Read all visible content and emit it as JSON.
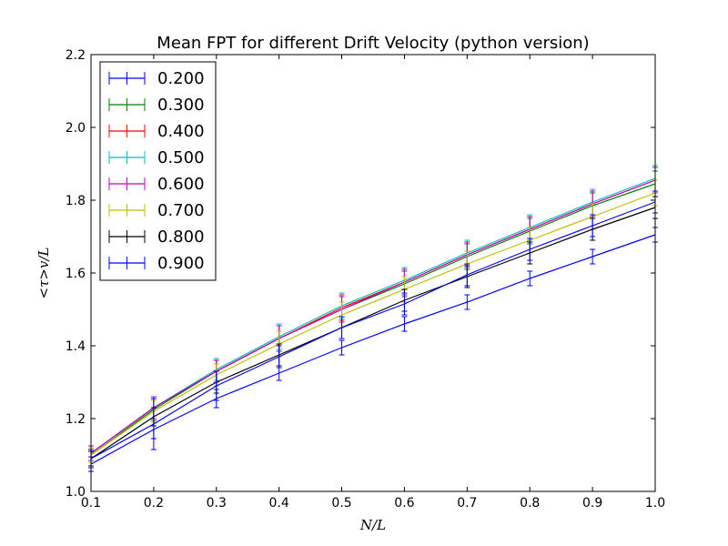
{
  "chart_data": {
    "type": "line",
    "title": "Mean FPT for different Drift Velocity (python version)",
    "xlabel": "N/L",
    "ylabel": "<τ>v/L",
    "xlim": [
      0.1,
      1.0
    ],
    "ylim": [
      1.0,
      2.2
    ],
    "x_ticks": [
      "0.1",
      "0.2",
      "0.3",
      "0.4",
      "0.5",
      "0.6",
      "0.7",
      "0.8",
      "0.9",
      "1.0"
    ],
    "y_ticks": [
      "1.0",
      "1.2",
      "1.4",
      "1.6",
      "1.8",
      "2.0",
      "2.2"
    ],
    "grid": false,
    "legend_position": "top-left",
    "x": [
      0.1,
      0.2,
      0.3,
      0.4,
      0.5,
      0.6,
      0.7,
      0.8,
      0.9,
      1.0
    ],
    "series": [
      {
        "name": "0.200",
        "color": "#0000ff",
        "values": [
          1.075,
          1.17,
          1.255,
          1.325,
          1.395,
          1.46,
          1.52,
          1.585,
          1.645,
          1.705
        ],
        "errors": [
          0.02,
          0.025,
          0.025,
          0.02,
          0.02,
          0.02,
          0.02,
          0.02,
          0.02,
          0.02
        ]
      },
      {
        "name": "0.300",
        "color": "#008000",
        "values": [
          1.1,
          1.225,
          1.33,
          1.42,
          1.5,
          1.57,
          1.645,
          1.715,
          1.785,
          1.845
        ],
        "errors": [
          0.02,
          0.03,
          0.03,
          0.035,
          0.035,
          0.035,
          0.035,
          0.035,
          0.035,
          0.035
        ]
      },
      {
        "name": "0.400",
        "color": "#ff0000",
        "values": [
          1.105,
          1.23,
          1.33,
          1.42,
          1.505,
          1.575,
          1.65,
          1.72,
          1.79,
          1.855
        ],
        "errors": [
          0.02,
          0.03,
          0.03,
          0.035,
          0.035,
          0.035,
          0.035,
          0.035,
          0.035,
          0.035
        ]
      },
      {
        "name": "0.500",
        "color": "#00bfbf",
        "values": [
          1.105,
          1.23,
          1.335,
          1.425,
          1.51,
          1.58,
          1.655,
          1.725,
          1.795,
          1.86
        ],
        "errors": [
          0.02,
          0.03,
          0.03,
          0.035,
          0.035,
          0.035,
          0.035,
          0.035,
          0.035,
          0.035
        ]
      },
      {
        "name": "0.600",
        "color": "#bf00bf",
        "values": [
          1.105,
          1.23,
          1.33,
          1.42,
          1.5,
          1.575,
          1.65,
          1.72,
          1.79,
          1.855
        ],
        "errors": [
          0.02,
          0.03,
          0.03,
          0.035,
          0.035,
          0.035,
          0.035,
          0.035,
          0.035,
          0.035
        ]
      },
      {
        "name": "0.700",
        "color": "#bfbf00",
        "values": [
          1.1,
          1.22,
          1.32,
          1.405,
          1.485,
          1.555,
          1.625,
          1.69,
          1.755,
          1.82
        ],
        "errors": [
          0.02,
          0.03,
          0.03,
          0.035,
          0.035,
          0.035,
          0.035,
          0.035,
          0.035,
          0.035
        ]
      },
      {
        "name": "0.800",
        "color": "#000000",
        "values": [
          1.09,
          1.205,
          1.3,
          1.375,
          1.45,
          1.525,
          1.59,
          1.655,
          1.72,
          1.78
        ],
        "errors": [
          0.02,
          0.025,
          0.03,
          0.03,
          0.03,
          0.03,
          0.03,
          0.03,
          0.03,
          0.03
        ]
      },
      {
        "name": "0.900",
        "color": "#0000ff",
        "values": [
          1.09,
          1.185,
          1.29,
          1.37,
          1.45,
          1.515,
          1.595,
          1.665,
          1.73,
          1.795
        ],
        "errors": [
          0.025,
          0.07,
          0.04,
          0.03,
          0.03,
          0.03,
          0.03,
          0.03,
          0.03,
          0.03
        ]
      }
    ]
  }
}
